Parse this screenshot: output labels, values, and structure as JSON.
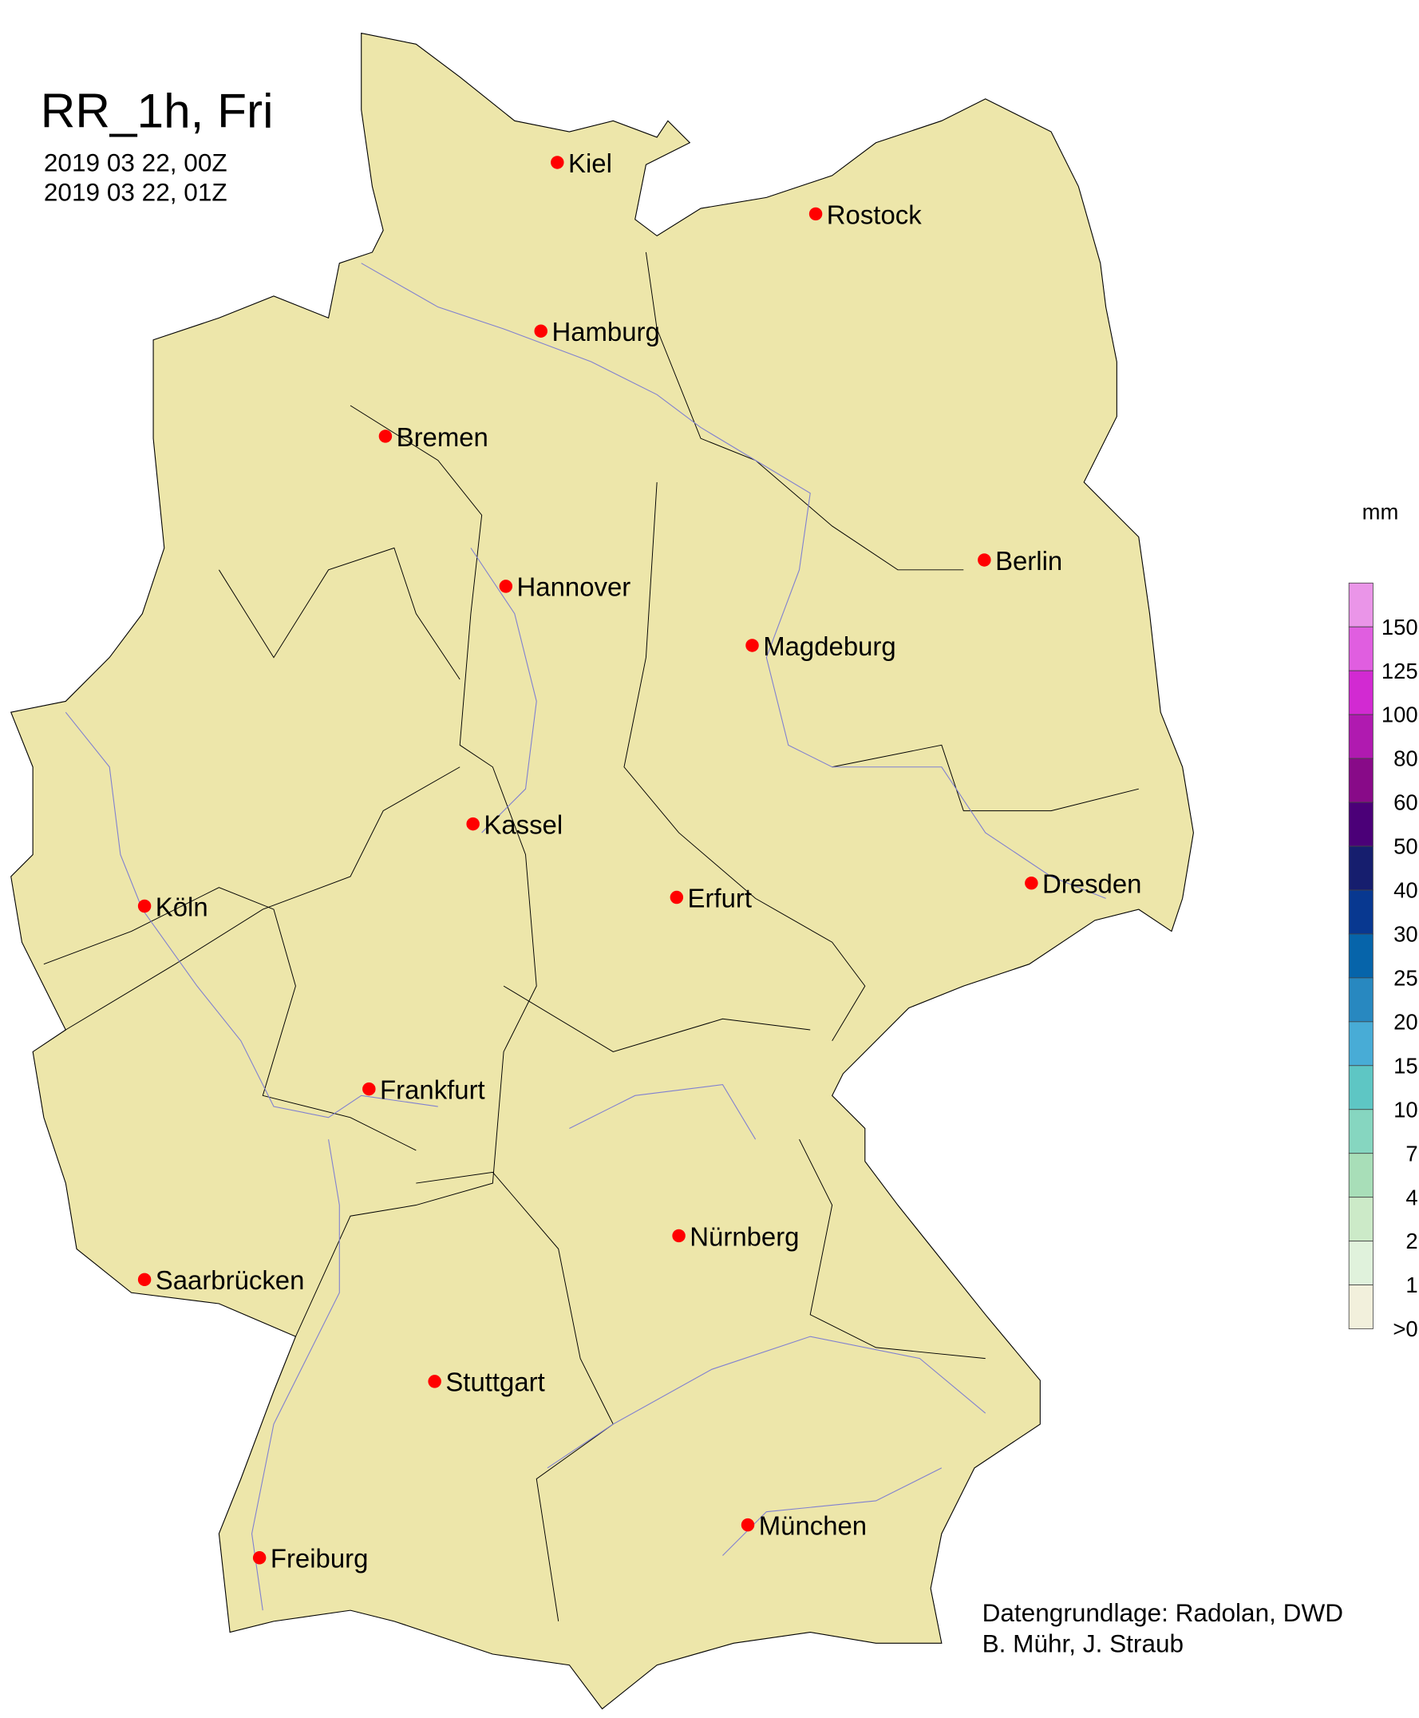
{
  "title": "RR_1h, Fri",
  "period_start": "2019 03 22, 00Z",
  "period_end": "2019 03 22, 01Z",
  "attribution": [
    "Datengrundlage: Radolan, DWD",
    "B. Mühr, J. Straub"
  ],
  "colors": {
    "land": "#ede6aa",
    "border": "#000000",
    "river": "#8080d0",
    "city_marker": "#ff0000"
  },
  "legend": {
    "unit": "mm",
    "labels": [
      "150",
      "125",
      "100",
      "80",
      "60",
      "50",
      "40",
      "30",
      "25",
      "20",
      "15",
      "10",
      "7",
      "4",
      "2",
      "1",
      ">0"
    ],
    "colors": [
      "#ea95e8",
      "#e05ee0",
      "#d22ad2",
      "#b01ab0",
      "#880a88",
      "#4b0078",
      "#161e6e",
      "#083890",
      "#0664aa",
      "#2888c0",
      "#48acd6",
      "#5ec6c4",
      "#86d6c0",
      "#a8deb8",
      "#cceac8",
      "#e0f2dc",
      "#f2f0dc"
    ]
  },
  "cities": [
    "Kiel",
    "Rostock",
    "Hamburg",
    "Bremen",
    "Berlin",
    "Hannover",
    "Magdeburg",
    "Kassel",
    "Köln",
    "Erfurt",
    "Dresden",
    "Frankfurt",
    "Nürnberg",
    "Saarbrücken",
    "Stuttgart",
    "München",
    "Freiburg"
  ]
}
